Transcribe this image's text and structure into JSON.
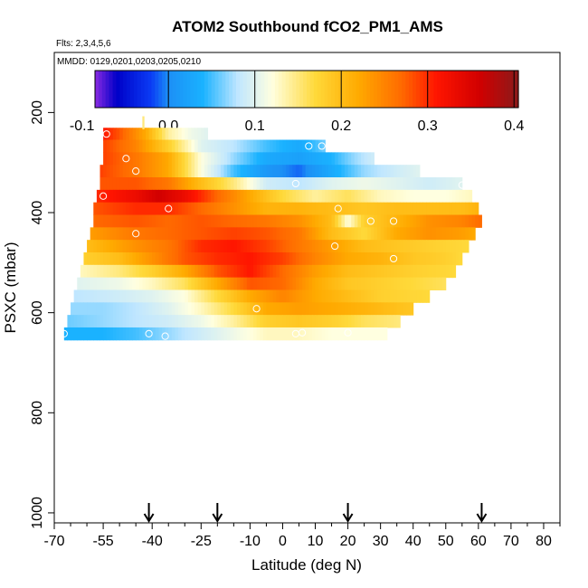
{
  "chart_data": {
    "type": "heatmap",
    "title": "ATOM2 Southbound fCO2_PM1_AMS",
    "flights_label": "Flts: 2,3,4,5,6",
    "dates_label": "MMDD: 0129,0201,0203,0205,0210",
    "xlabel": "Latitude (deg N)",
    "ylabel": "PSXC (mbar)",
    "xlim": [
      -70,
      85
    ],
    "ylim": [
      1020,
      80
    ],
    "x_ticks": [
      -70,
      -55,
      -40,
      -25,
      -10,
      0,
      10,
      20,
      30,
      40,
      50,
      60,
      70,
      80
    ],
    "x_tick_labels": [
      "-70",
      "-55",
      "-40",
      "-25",
      "-10",
      "0",
      "10",
      "20",
      "30",
      "40",
      "50",
      "60",
      "70",
      "80"
    ],
    "x_minor_ticks": [
      -65,
      -60,
      -50,
      -45,
      -35,
      -30,
      -20,
      -15,
      -5,
      5,
      15,
      25,
      35,
      45,
      55,
      65,
      75,
      85
    ],
    "y_ticks": [
      200,
      400,
      600,
      800,
      1000
    ],
    "y_tick_labels": [
      "200",
      "400",
      "600",
      "800",
      "1000"
    ],
    "colorbar": {
      "min": -0.085,
      "max": 0.405,
      "ticks": [
        -0.1,
        0.0,
        0.1,
        0.2,
        0.3,
        0.4
      ],
      "tick_labels": [
        "-0.1",
        "0.0",
        "0.1",
        "0.2",
        "0.3",
        "0.4"
      ],
      "line_values": [
        -0.1,
        0.0,
        0.1,
        0.2,
        0.3,
        0.4
      ],
      "color_stops": [
        {
          "v": -0.085,
          "c": "#8a2be2"
        },
        {
          "v": -0.06,
          "c": "#0000c8"
        },
        {
          "v": -0.02,
          "c": "#0a3cf5"
        },
        {
          "v": 0.0,
          "c": "#1c8ff5"
        },
        {
          "v": 0.04,
          "c": "#1ab2ff"
        },
        {
          "v": 0.08,
          "c": "#bfe6ff"
        },
        {
          "v": 0.12,
          "c": "#ffffe0"
        },
        {
          "v": 0.17,
          "c": "#ffd93a"
        },
        {
          "v": 0.22,
          "c": "#ffaa00"
        },
        {
          "v": 0.27,
          "c": "#ff6a00"
        },
        {
          "v": 0.31,
          "c": "#ff1500"
        },
        {
          "v": 0.36,
          "c": "#d10000"
        },
        {
          "v": 0.405,
          "c": "#8b1a1a"
        }
      ]
    },
    "rows": [
      {
        "p": 243,
        "lat_min": -55,
        "lat_max": -23,
        "knots": [
          [
            -55,
            0.31
          ],
          [
            -50,
            0.28
          ],
          [
            -42,
            0.22
          ],
          [
            -35,
            0.14
          ],
          [
            -28,
            0.11
          ],
          [
            -23,
            0.1
          ]
        ]
      },
      {
        "p": 267,
        "lat_min": -55,
        "lat_max": 13,
        "knots": [
          [
            -55,
            0.29
          ],
          [
            -45,
            0.25
          ],
          [
            -35,
            0.18
          ],
          [
            -25,
            0.1
          ],
          [
            -15,
            0.08
          ],
          [
            -5,
            0.05
          ],
          [
            5,
            0.03
          ],
          [
            13,
            0.06
          ]
        ]
      },
      {
        "p": 292,
        "lat_min": -55,
        "lat_max": 28,
        "knots": [
          [
            -55,
            0.29
          ],
          [
            -45,
            0.26
          ],
          [
            -35,
            0.22
          ],
          [
            -25,
            0.12
          ],
          [
            -15,
            0.07
          ],
          [
            -5,
            0.03
          ],
          [
            5,
            0.02
          ],
          [
            15,
            0.04
          ],
          [
            22,
            0.07
          ],
          [
            28,
            0.09
          ]
        ]
      },
      {
        "p": 317,
        "lat_min": -56,
        "lat_max": 42,
        "knots": [
          [
            -56,
            0.29
          ],
          [
            -45,
            0.26
          ],
          [
            -35,
            0.22
          ],
          [
            -25,
            0.12
          ],
          [
            -15,
            0.05
          ],
          [
            -5,
            0.01
          ],
          [
            5,
            -0.01
          ],
          [
            15,
            0.03
          ],
          [
            25,
            0.07
          ],
          [
            35,
            0.09
          ],
          [
            42,
            0.1
          ]
        ]
      },
      {
        "p": 342,
        "lat_min": -56,
        "lat_max": 55,
        "knots": [
          [
            -56,
            0.28
          ],
          [
            -45,
            0.28
          ],
          [
            -35,
            0.26
          ],
          [
            -25,
            0.2
          ],
          [
            -15,
            0.15
          ],
          [
            -5,
            0.09
          ],
          [
            5,
            0.08
          ],
          [
            15,
            0.1
          ],
          [
            25,
            0.11
          ],
          [
            35,
            0.1
          ],
          [
            45,
            0.09
          ],
          [
            55,
            0.1
          ]
        ]
      },
      {
        "p": 367,
        "lat_min": -57,
        "lat_max": 58,
        "knots": [
          [
            -57,
            0.3
          ],
          [
            -45,
            0.33
          ],
          [
            -38,
            0.36
          ],
          [
            -30,
            0.33
          ],
          [
            -20,
            0.27
          ],
          [
            -10,
            0.22
          ],
          [
            0,
            0.17
          ],
          [
            10,
            0.14
          ],
          [
            20,
            0.16
          ],
          [
            30,
            0.13
          ],
          [
            40,
            0.12
          ],
          [
            50,
            0.12
          ],
          [
            58,
            0.13
          ]
        ]
      },
      {
        "p": 392,
        "lat_min": -58,
        "lat_max": 60,
        "knots": [
          [
            -58,
            0.28
          ],
          [
            -45,
            0.3
          ],
          [
            -35,
            0.3
          ],
          [
            -25,
            0.27
          ],
          [
            -15,
            0.24
          ],
          [
            -5,
            0.21
          ],
          [
            5,
            0.21
          ],
          [
            15,
            0.2
          ],
          [
            25,
            0.19
          ],
          [
            35,
            0.2
          ],
          [
            45,
            0.2
          ],
          [
            55,
            0.2
          ],
          [
            60,
            0.21
          ]
        ]
      },
      {
        "p": 417,
        "lat_min": -58,
        "lat_max": 61,
        "knots": [
          [
            -58,
            0.27
          ],
          [
            -45,
            0.28
          ],
          [
            -35,
            0.27
          ],
          [
            -25,
            0.28
          ],
          [
            -15,
            0.27
          ],
          [
            -5,
            0.26
          ],
          [
            5,
            0.24
          ],
          [
            15,
            0.2
          ],
          [
            20,
            0.12
          ],
          [
            25,
            0.18
          ],
          [
            35,
            0.21
          ],
          [
            45,
            0.24
          ],
          [
            55,
            0.25
          ],
          [
            61,
            0.27
          ]
        ]
      },
      {
        "p": 442,
        "lat_min": -59,
        "lat_max": 59,
        "knots": [
          [
            -59,
            0.23
          ],
          [
            -45,
            0.26
          ],
          [
            -35,
            0.27
          ],
          [
            -25,
            0.28
          ],
          [
            -15,
            0.29
          ],
          [
            -5,
            0.28
          ],
          [
            5,
            0.26
          ],
          [
            15,
            0.2
          ],
          [
            25,
            0.17
          ],
          [
            35,
            0.22
          ],
          [
            45,
            0.24
          ],
          [
            55,
            0.23
          ],
          [
            59,
            0.22
          ]
        ]
      },
      {
        "p": 467,
        "lat_min": -60,
        "lat_max": 57,
        "knots": [
          [
            -60,
            0.2
          ],
          [
            -45,
            0.24
          ],
          [
            -35,
            0.26
          ],
          [
            -25,
            0.3
          ],
          [
            -15,
            0.31
          ],
          [
            -5,
            0.29
          ],
          [
            5,
            0.26
          ],
          [
            15,
            0.23
          ],
          [
            25,
            0.2
          ],
          [
            35,
            0.19
          ],
          [
            45,
            0.18
          ],
          [
            57,
            0.17
          ]
        ]
      },
      {
        "p": 492,
        "lat_min": -61,
        "lat_max": 55,
        "knots": [
          [
            -61,
            0.18
          ],
          [
            -50,
            0.2
          ],
          [
            -40,
            0.24
          ],
          [
            -30,
            0.28
          ],
          [
            -20,
            0.3
          ],
          [
            -10,
            0.31
          ],
          [
            0,
            0.29
          ],
          [
            10,
            0.25
          ],
          [
            20,
            0.22
          ],
          [
            30,
            0.21
          ],
          [
            40,
            0.19
          ],
          [
            50,
            0.18
          ],
          [
            55,
            0.17
          ]
        ]
      },
      {
        "p": 517,
        "lat_min": -62,
        "lat_max": 53,
        "knots": [
          [
            -62,
            0.13
          ],
          [
            -50,
            0.15
          ],
          [
            -40,
            0.18
          ],
          [
            -30,
            0.22
          ],
          [
            -20,
            0.28
          ],
          [
            -10,
            0.31
          ],
          [
            0,
            0.27
          ],
          [
            10,
            0.23
          ],
          [
            20,
            0.2
          ],
          [
            30,
            0.19
          ],
          [
            40,
            0.18
          ],
          [
            53,
            0.17
          ]
        ]
      },
      {
        "p": 542,
        "lat_min": -63,
        "lat_max": 50,
        "knots": [
          [
            -63,
            0.1
          ],
          [
            -50,
            0.11
          ],
          [
            -40,
            0.13
          ],
          [
            -30,
            0.16
          ],
          [
            -20,
            0.22
          ],
          [
            -10,
            0.28
          ],
          [
            0,
            0.27
          ],
          [
            10,
            0.22
          ],
          [
            20,
            0.19
          ],
          [
            30,
            0.18
          ],
          [
            40,
            0.17
          ],
          [
            50,
            0.16
          ]
        ]
      },
      {
        "p": 567,
        "lat_min": -64,
        "lat_max": 45,
        "knots": [
          [
            -64,
            0.08
          ],
          [
            -50,
            0.09
          ],
          [
            -40,
            0.1
          ],
          [
            -30,
            0.12
          ],
          [
            -20,
            0.17
          ],
          [
            -10,
            0.22
          ],
          [
            0,
            0.25
          ],
          [
            10,
            0.22
          ],
          [
            20,
            0.2
          ],
          [
            30,
            0.18
          ],
          [
            45,
            0.17
          ]
        ]
      },
      {
        "p": 592,
        "lat_min": -65,
        "lat_max": 40,
        "knots": [
          [
            -65,
            0.07
          ],
          [
            -55,
            0.07
          ],
          [
            -45,
            0.08
          ],
          [
            -35,
            0.1
          ],
          [
            -25,
            0.13
          ],
          [
            -15,
            0.17
          ],
          [
            -5,
            0.22
          ],
          [
            5,
            0.23
          ],
          [
            15,
            0.22
          ],
          [
            25,
            0.21
          ],
          [
            40,
            0.19
          ]
        ]
      },
      {
        "p": 617,
        "lat_min": -66,
        "lat_max": 36,
        "knots": [
          [
            -66,
            0.06
          ],
          [
            -55,
            0.07
          ],
          [
            -45,
            0.08
          ],
          [
            -35,
            0.09
          ],
          [
            -25,
            0.11
          ],
          [
            -15,
            0.14
          ],
          [
            -5,
            0.18
          ],
          [
            5,
            0.19
          ],
          [
            15,
            0.18
          ],
          [
            25,
            0.16
          ],
          [
            36,
            0.15
          ]
        ]
      },
      {
        "p": 642,
        "lat_min": -67,
        "lat_max": 32,
        "knots": [
          [
            -67,
            0.04
          ],
          [
            -55,
            0.04
          ],
          [
            -45,
            0.05
          ],
          [
            -35,
            0.07
          ],
          [
            -25,
            0.09
          ],
          [
            -15,
            0.11
          ],
          [
            -5,
            0.13
          ],
          [
            5,
            0.13
          ],
          [
            15,
            0.12
          ],
          [
            25,
            0.12
          ],
          [
            32,
            0.12
          ]
        ]
      }
    ],
    "cap_rows": [
      {
        "p": 220,
        "lat_min": -43,
        "lat_max": -42.5,
        "value": 0.15
      }
    ],
    "markers": [
      {
        "lat": -41,
        "p": 982
      },
      {
        "lat": -41,
        "p": 985
      },
      {
        "lat": -20,
        "p": 985
      },
      {
        "lat": 20,
        "p": 985
      },
      {
        "lat": 61,
        "p": 985
      }
    ],
    "open_circles": [
      {
        "lat": -54,
        "p": 243
      },
      {
        "lat": 8,
        "p": 267
      },
      {
        "lat": 12,
        "p": 267
      },
      {
        "lat": -48,
        "p": 292
      },
      {
        "lat": -45,
        "p": 317
      },
      {
        "lat": 4,
        "p": 342
      },
      {
        "lat": 55,
        "p": 345
      },
      {
        "lat": -55,
        "p": 367
      },
      {
        "lat": -35,
        "p": 392
      },
      {
        "lat": 17,
        "p": 392
      },
      {
        "lat": 27,
        "p": 417
      },
      {
        "lat": 34,
        "p": 417
      },
      {
        "lat": -45,
        "p": 442
      },
      {
        "lat": 62,
        "p": 442
      },
      {
        "lat": 16,
        "p": 467
      },
      {
        "lat": 34,
        "p": 492
      },
      {
        "lat": 57,
        "p": 517
      },
      {
        "lat": -8,
        "p": 592
      },
      {
        "lat": -67,
        "p": 642
      },
      {
        "lat": -41,
        "p": 642
      },
      {
        "lat": -36,
        "p": 647
      },
      {
        "lat": 4,
        "p": 642
      },
      {
        "lat": 6,
        "p": 640
      },
      {
        "lat": 20,
        "p": 640
      }
    ]
  }
}
